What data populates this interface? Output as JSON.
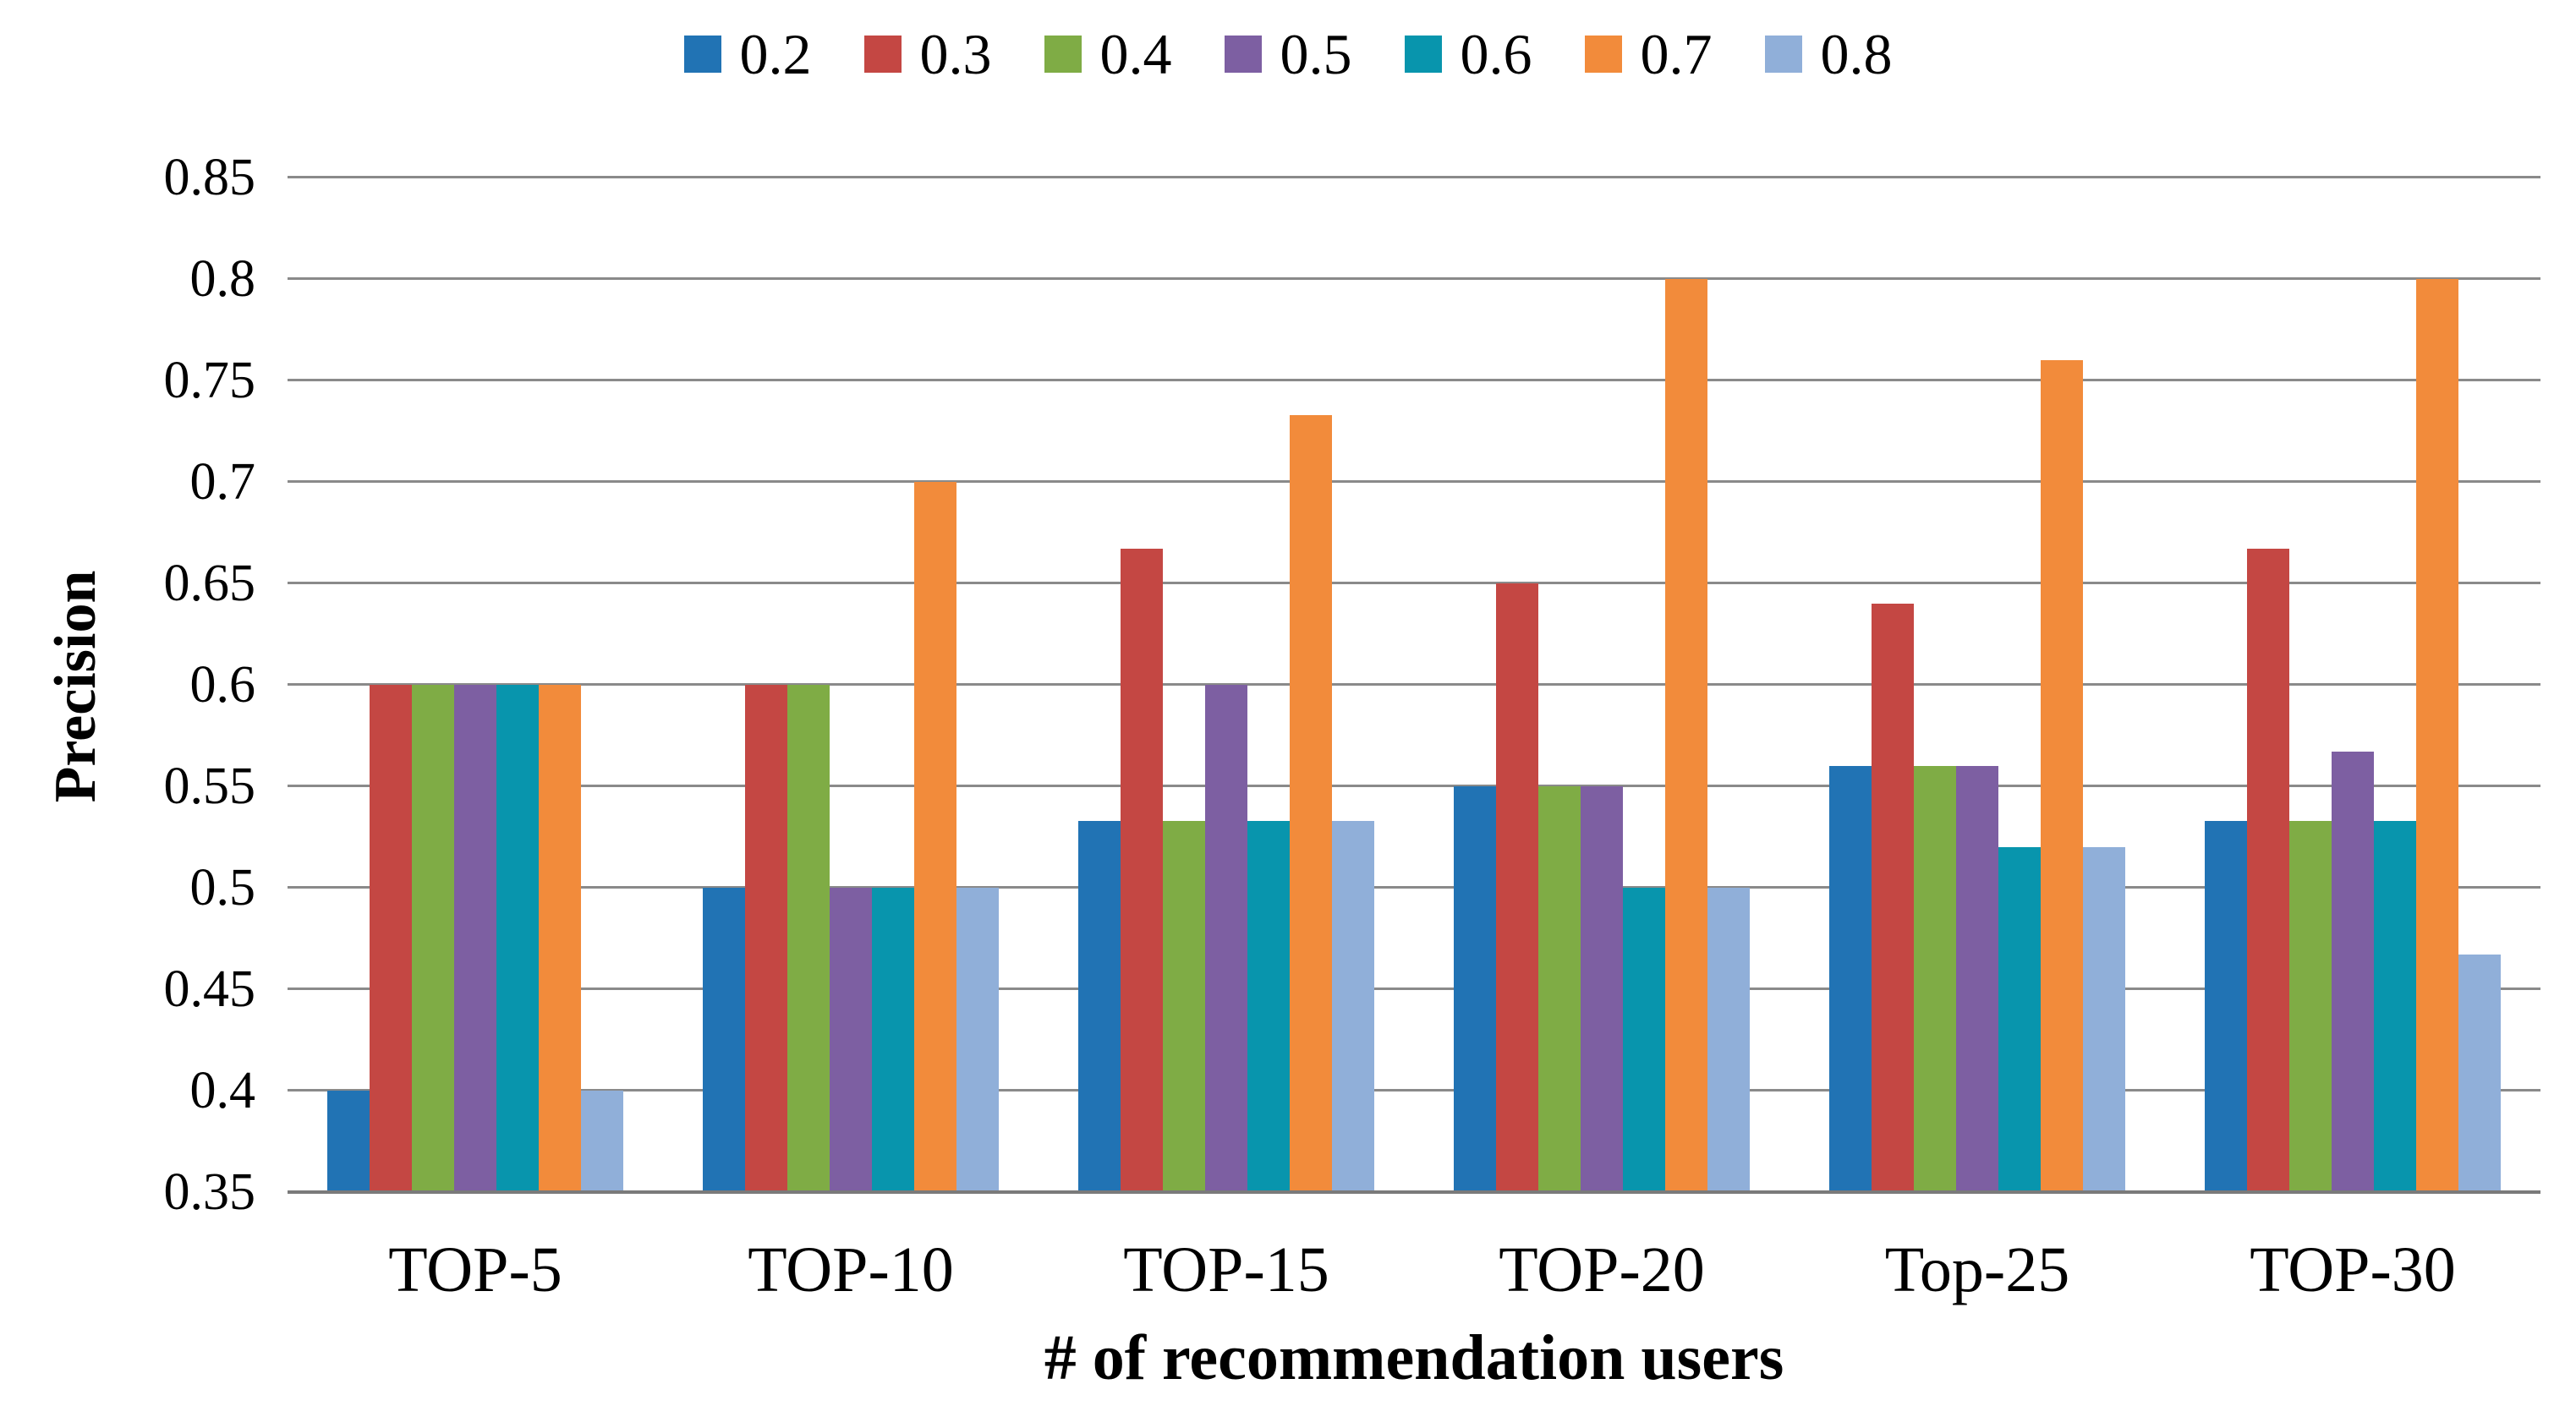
{
  "chart_data": {
    "type": "bar",
    "title": "",
    "xlabel": "# of recommendation users",
    "ylabel": "Precision",
    "categories": [
      "TOP-5",
      "TOP-10",
      "TOP-15",
      "TOP-20",
      "Top-25",
      "TOP-30"
    ],
    "series": [
      {
        "name": "0.2",
        "color": "#2173b4",
        "values": [
          0.4,
          0.5,
          0.533,
          0.55,
          0.56,
          0.533
        ]
      },
      {
        "name": "0.3",
        "color": "#c44743",
        "values": [
          0.6,
          0.6,
          0.667,
          0.65,
          0.64,
          0.667
        ]
      },
      {
        "name": "0.4",
        "color": "#7fac45",
        "values": [
          0.6,
          0.6,
          0.533,
          0.55,
          0.56,
          0.533
        ]
      },
      {
        "name": "0.5",
        "color": "#7d5fa2",
        "values": [
          0.6,
          0.5,
          0.6,
          0.55,
          0.56,
          0.567
        ]
      },
      {
        "name": "0.6",
        "color": "#0895ad",
        "values": [
          0.6,
          0.5,
          0.533,
          0.5,
          0.52,
          0.533
        ]
      },
      {
        "name": "0.7",
        "color": "#f28b3b",
        "values": [
          0.6,
          0.7,
          0.733,
          0.8,
          0.76,
          0.8
        ]
      },
      {
        "name": "0.8",
        "color": "#90afd9",
        "values": [
          0.4,
          0.5,
          0.533,
          0.5,
          0.52,
          0.467
        ]
      }
    ],
    "ylim": [
      0.35,
      0.85
    ],
    "ytick_step": 0.05,
    "yticks": [
      "0.85",
      "0.8",
      "0.75",
      "0.7",
      "0.65",
      "0.6",
      "0.55",
      "0.5",
      "0.45",
      "0.4",
      "0.35"
    ],
    "grid": true,
    "legend_position": "top",
    "gridline_color": "#8a8a8a",
    "axis_line_color": "#7a7a7a"
  }
}
